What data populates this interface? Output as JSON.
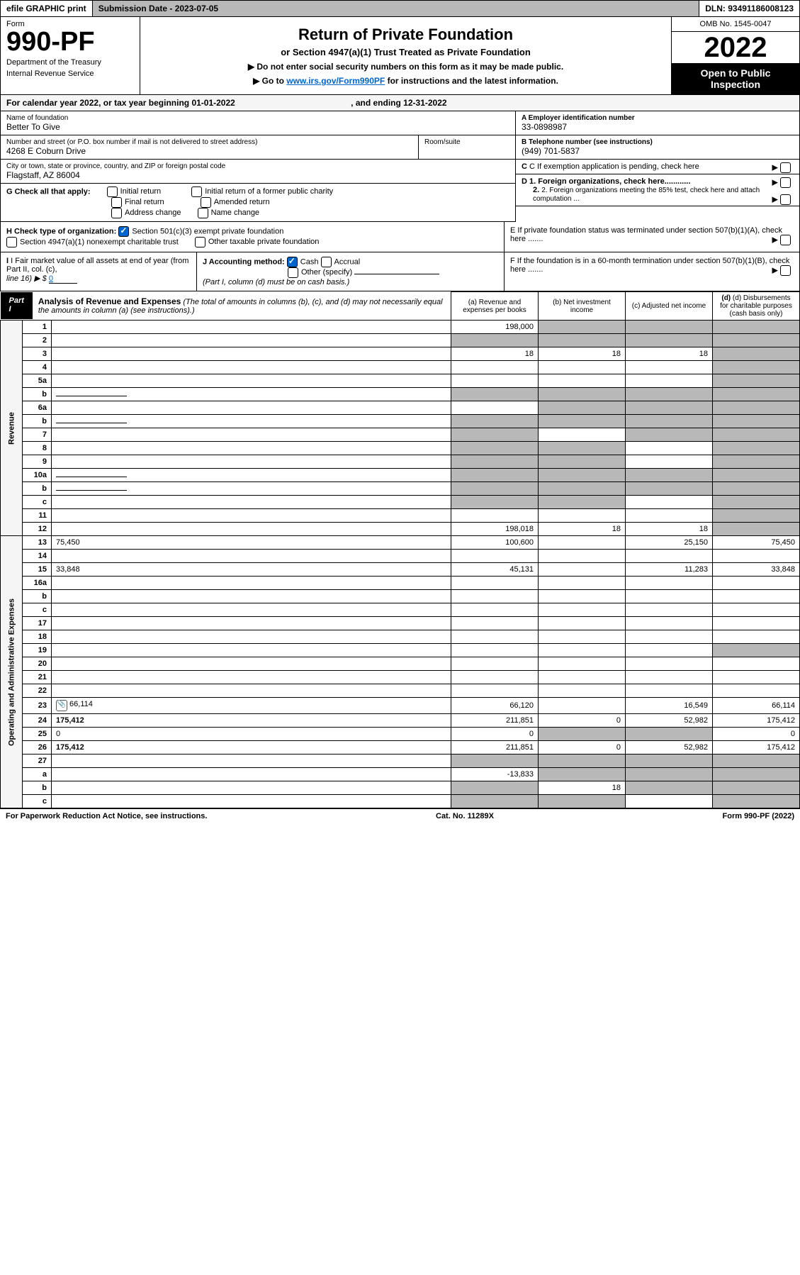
{
  "topbar": {
    "efile": "efile GRAPHIC print",
    "submission": "Submission Date - 2023-07-05",
    "dln": "DLN: 93491186008123"
  },
  "header": {
    "form_label": "Form",
    "form_number": "990-PF",
    "dept1": "Department of the Treasury",
    "dept2": "Internal Revenue Service",
    "title": "Return of Private Foundation",
    "subtitle": "or Section 4947(a)(1) Trust Treated as Private Foundation",
    "instr1": "▶ Do not enter social security numbers on this form as it may be made public.",
    "instr2_pre": "▶ Go to ",
    "instr2_link": "www.irs.gov/Form990PF",
    "instr2_post": " for instructions and the latest information.",
    "omb": "OMB No. 1545-0047",
    "year": "2022",
    "open": "Open to Public Inspection"
  },
  "calyear": {
    "text": "For calendar year 2022, or tax year beginning 01-01-2022",
    "ending": ", and ending 12-31-2022"
  },
  "foundation": {
    "name_label": "Name of foundation",
    "name": "Better To Give",
    "addr_label": "Number and street (or P.O. box number if mail is not delivered to street address)",
    "addr": "4268 E Coburn Drive",
    "room_label": "Room/suite",
    "city_label": "City or town, state or province, country, and ZIP or foreign postal code",
    "city": "Flagstaff, AZ  86004"
  },
  "right_info": {
    "a_label": "A Employer identification number",
    "a_val": "33-0898987",
    "b_label": "B Telephone number (see instructions)",
    "b_val": "(949) 701-5837",
    "c_label": "C If exemption application is pending, check here",
    "d1": "D 1. Foreign organizations, check here............",
    "d2": "2. Foreign organizations meeting the 85% test, check here and attach computation ...",
    "e": "E  If private foundation status was terminated under section 507(b)(1)(A), check here .......",
    "f": "F  If the foundation is in a 60-month termination under section 507(b)(1)(B), check here ......."
  },
  "g": {
    "label": "G Check all that apply:",
    "opts": [
      "Initial return",
      "Final return",
      "Address change",
      "Initial return of a former public charity",
      "Amended return",
      "Name change"
    ]
  },
  "h": {
    "label": "H Check type of organization:",
    "opt1": "Section 501(c)(3) exempt private foundation",
    "opt2": "Section 4947(a)(1) nonexempt charitable trust",
    "opt3": "Other taxable private foundation"
  },
  "i": {
    "label": "I Fair market value of all assets at end of year (from Part II, col. (c),",
    "line16": "line 16) ▶ $",
    "val": "0"
  },
  "j": {
    "label": "J Accounting method:",
    "cash": "Cash",
    "accrual": "Accrual",
    "other": "Other (specify)",
    "note": "(Part I, column (d) must be on cash basis.)"
  },
  "part1": {
    "label": "Part I",
    "title": "Analysis of Revenue and Expenses",
    "note": "(The total of amounts in columns (b), (c), and (d) may not necessarily equal the amounts in column (a) (see instructions).)",
    "col_a": "(a)  Revenue and expenses per books",
    "col_b": "(b)  Net investment income",
    "col_c": "(c)  Adjusted net income",
    "col_d": "(d)  Disbursements for charitable purposes (cash basis only)"
  },
  "side_labels": {
    "revenue": "Revenue",
    "expenses": "Operating and Administrative Expenses"
  },
  "rows": [
    {
      "n": "1",
      "d": "",
      "a": "198,000",
      "b": "",
      "c": "",
      "grey_b": true,
      "grey_c": true,
      "grey_d": true
    },
    {
      "n": "2",
      "d": "",
      "a": "",
      "b": "",
      "c": "",
      "grey_all": true,
      "bold_not": true
    },
    {
      "n": "3",
      "d": "",
      "a": "18",
      "b": "18",
      "c": "18",
      "grey_d": true
    },
    {
      "n": "4",
      "d": "",
      "a": "",
      "b": "",
      "c": "",
      "grey_d": true
    },
    {
      "n": "5a",
      "d": "",
      "a": "",
      "b": "",
      "c": "",
      "grey_d": true
    },
    {
      "n": "b",
      "d": "",
      "a": "",
      "b": "",
      "c": "",
      "grey_all": true,
      "inline": true
    },
    {
      "n": "6a",
      "d": "",
      "a": "",
      "b": "",
      "c": "",
      "grey_b": true,
      "grey_c": true,
      "grey_d": true
    },
    {
      "n": "b",
      "d": "",
      "a": "",
      "b": "",
      "c": "",
      "grey_all": true,
      "inline": true
    },
    {
      "n": "7",
      "d": "",
      "a": "",
      "b": "",
      "c": "",
      "grey_a": true,
      "grey_c": true,
      "grey_d": true
    },
    {
      "n": "8",
      "d": "",
      "a": "",
      "b": "",
      "c": "",
      "grey_a": true,
      "grey_b": true,
      "grey_d": true
    },
    {
      "n": "9",
      "d": "",
      "a": "",
      "b": "",
      "c": "",
      "grey_a": true,
      "grey_b": true,
      "grey_d": true
    },
    {
      "n": "10a",
      "d": "",
      "a": "",
      "b": "",
      "c": "",
      "grey_all": true,
      "inline": true
    },
    {
      "n": "b",
      "d": "",
      "a": "",
      "b": "",
      "c": "",
      "grey_all": true,
      "inline": true
    },
    {
      "n": "c",
      "d": "",
      "a": "",
      "b": "",
      "c": "",
      "grey_a": true,
      "grey_b": true,
      "grey_d": true
    },
    {
      "n": "11",
      "d": "",
      "a": "",
      "b": "",
      "c": "",
      "grey_d": true
    },
    {
      "n": "12",
      "d": "",
      "a": "198,018",
      "b": "18",
      "c": "18",
      "bold": true,
      "grey_d": true
    },
    {
      "n": "13",
      "d": "75,450",
      "a": "100,600",
      "b": "",
      "c": "25,150"
    },
    {
      "n": "14",
      "d": "",
      "a": "",
      "b": "",
      "c": ""
    },
    {
      "n": "15",
      "d": "33,848",
      "a": "45,131",
      "b": "",
      "c": "11,283"
    },
    {
      "n": "16a",
      "d": "",
      "a": "",
      "b": "",
      "c": ""
    },
    {
      "n": "b",
      "d": "",
      "a": "",
      "b": "",
      "c": ""
    },
    {
      "n": "c",
      "d": "",
      "a": "",
      "b": "",
      "c": ""
    },
    {
      "n": "17",
      "d": "",
      "a": "",
      "b": "",
      "c": ""
    },
    {
      "n": "18",
      "d": "",
      "a": "",
      "b": "",
      "c": ""
    },
    {
      "n": "19",
      "d": "",
      "a": "",
      "b": "",
      "c": "",
      "grey_d": true
    },
    {
      "n": "20",
      "d": "",
      "a": "",
      "b": "",
      "c": ""
    },
    {
      "n": "21",
      "d": "",
      "a": "",
      "b": "",
      "c": ""
    },
    {
      "n": "22",
      "d": "",
      "a": "",
      "b": "",
      "c": ""
    },
    {
      "n": "23",
      "d": "66,114",
      "a": "66,120",
      "b": "",
      "c": "16,549",
      "attach": true
    },
    {
      "n": "24",
      "d": "175,412",
      "a": "211,851",
      "b": "0",
      "c": "52,982",
      "bold": true
    },
    {
      "n": "25",
      "d": "0",
      "a": "0",
      "b": "",
      "c": "",
      "grey_b": true,
      "grey_c": true
    },
    {
      "n": "26",
      "d": "175,412",
      "a": "211,851",
      "b": "0",
      "c": "52,982",
      "bold": true
    },
    {
      "n": "27",
      "d": "",
      "a": "",
      "b": "",
      "c": "",
      "grey_all": true
    },
    {
      "n": "a",
      "d": "",
      "a": "-13,833",
      "b": "",
      "c": "",
      "bold": true,
      "grey_b": true,
      "grey_c": true,
      "grey_d": true
    },
    {
      "n": "b",
      "d": "",
      "a": "",
      "b": "18",
      "c": "",
      "bold": true,
      "grey_a": true,
      "grey_c": true,
      "grey_d": true
    },
    {
      "n": "c",
      "d": "",
      "a": "",
      "b": "",
      "c": "",
      "bold": true,
      "grey_a": true,
      "grey_b": true,
      "grey_d": true
    }
  ],
  "footer": {
    "left": "For Paperwork Reduction Act Notice, see instructions.",
    "mid": "Cat. No. 11289X",
    "right": "Form 990-PF (2022)"
  }
}
